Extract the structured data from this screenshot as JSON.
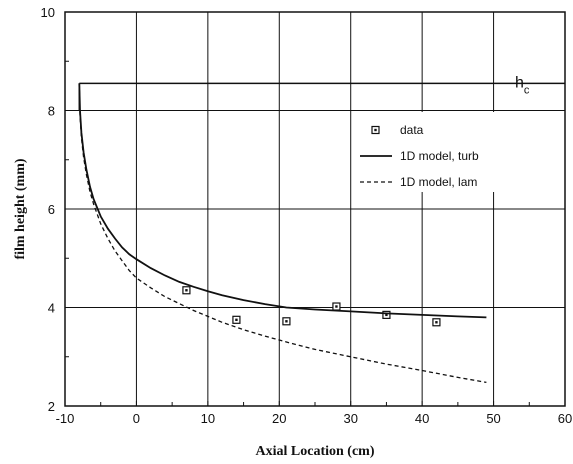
{
  "chart_data": {
    "type": "line",
    "title": "",
    "xlabel": "Axial Location (cm)",
    "ylabel": "film height (mm)",
    "xlim": [
      -10,
      60
    ],
    "ylim": [
      2,
      10
    ],
    "xticks": [
      -10,
      0,
      10,
      20,
      30,
      40,
      50,
      60
    ],
    "yticks": [
      2,
      4,
      6,
      8,
      10
    ],
    "xtick_labels": [
      "-10",
      "0",
      "10",
      "20",
      "30",
      "40",
      "50",
      "60"
    ],
    "ytick_labels": [
      "2",
      "4",
      "6",
      "8",
      "10"
    ],
    "grid": true,
    "legend_position": "right",
    "hc_line": {
      "y": 8.55,
      "x_start": -8,
      "x_end": 60,
      "label": "h",
      "label_sub": "c"
    },
    "series": [
      {
        "name": "data",
        "kind": "scatter",
        "marker": "square",
        "x": [
          7,
          14,
          21,
          28,
          35,
          42
        ],
        "y": [
          4.35,
          3.75,
          3.72,
          4.02,
          3.85,
          3.7
        ]
      },
      {
        "name": "1D model, turb",
        "kind": "line",
        "style": "solid",
        "x": [
          -8,
          -7.9,
          -7.7,
          -7.4,
          -7,
          -6.5,
          -6,
          -5,
          -4,
          -3,
          -2,
          -1,
          0,
          2,
          4,
          6,
          8,
          10,
          12,
          15,
          18,
          21,
          25,
          30,
          35,
          40,
          45,
          49
        ],
        "y": [
          8.55,
          8.0,
          7.55,
          7.15,
          6.8,
          6.45,
          6.2,
          5.85,
          5.6,
          5.4,
          5.22,
          5.08,
          4.98,
          4.8,
          4.65,
          4.52,
          4.42,
          4.33,
          4.25,
          4.15,
          4.07,
          4.0,
          3.96,
          3.92,
          3.88,
          3.85,
          3.82,
          3.8
        ]
      },
      {
        "name": "1D model, lam",
        "kind": "line",
        "style": "dashed",
        "x": [
          -8,
          -7.9,
          -7.7,
          -7.4,
          -7,
          -6.5,
          -6,
          -5,
          -4,
          -3,
          -2,
          -1,
          0,
          2,
          4,
          6,
          8,
          10,
          12,
          15,
          18,
          21,
          25,
          30,
          35,
          40,
          45,
          49
        ],
        "y": [
          8.55,
          7.9,
          7.45,
          7.05,
          6.7,
          6.35,
          6.1,
          5.7,
          5.4,
          5.15,
          4.95,
          4.75,
          4.6,
          4.4,
          4.22,
          4.08,
          3.94,
          3.82,
          3.7,
          3.55,
          3.42,
          3.3,
          3.15,
          3.0,
          2.85,
          2.72,
          2.58,
          2.48
        ]
      }
    ]
  }
}
